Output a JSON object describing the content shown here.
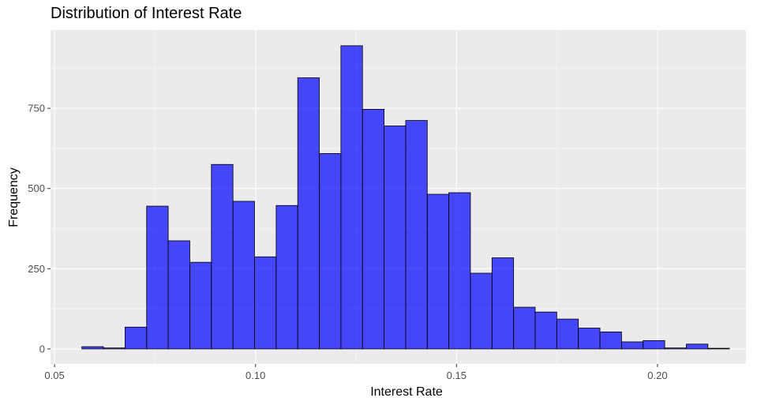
{
  "chart_data": {
    "type": "bar",
    "title": "Distribution of Interest Rate",
    "xlabel": "Interest Rate",
    "ylabel": "Frequency",
    "x_ticks": [
      0.05,
      0.1,
      0.15,
      0.2
    ],
    "x_tick_labels": [
      "0.05",
      "0.10",
      "0.15",
      "0.20"
    ],
    "y_ticks": [
      0,
      250,
      500,
      750
    ],
    "y_tick_labels": [
      "0",
      "250",
      "500",
      "750"
    ],
    "xlim": [
      0.049,
      0.222
    ],
    "ylim": [
      -47,
      994
    ],
    "grid": true,
    "legend": "none",
    "bin_start": 0.0568,
    "bin_width": 0.00537,
    "values": [
      7,
      3,
      68,
      445,
      337,
      270,
      575,
      460,
      287,
      447,
      845,
      609,
      945,
      747,
      695,
      712,
      482,
      487,
      236,
      284,
      130,
      115,
      93,
      65,
      53,
      22,
      26,
      3,
      15,
      2
    ],
    "fill_color": "#0000FF",
    "fill_opacity": 0.7,
    "edge_color": "#000000",
    "panel_color": "#EBEBEB",
    "grid_color": "#FFFFFF"
  }
}
